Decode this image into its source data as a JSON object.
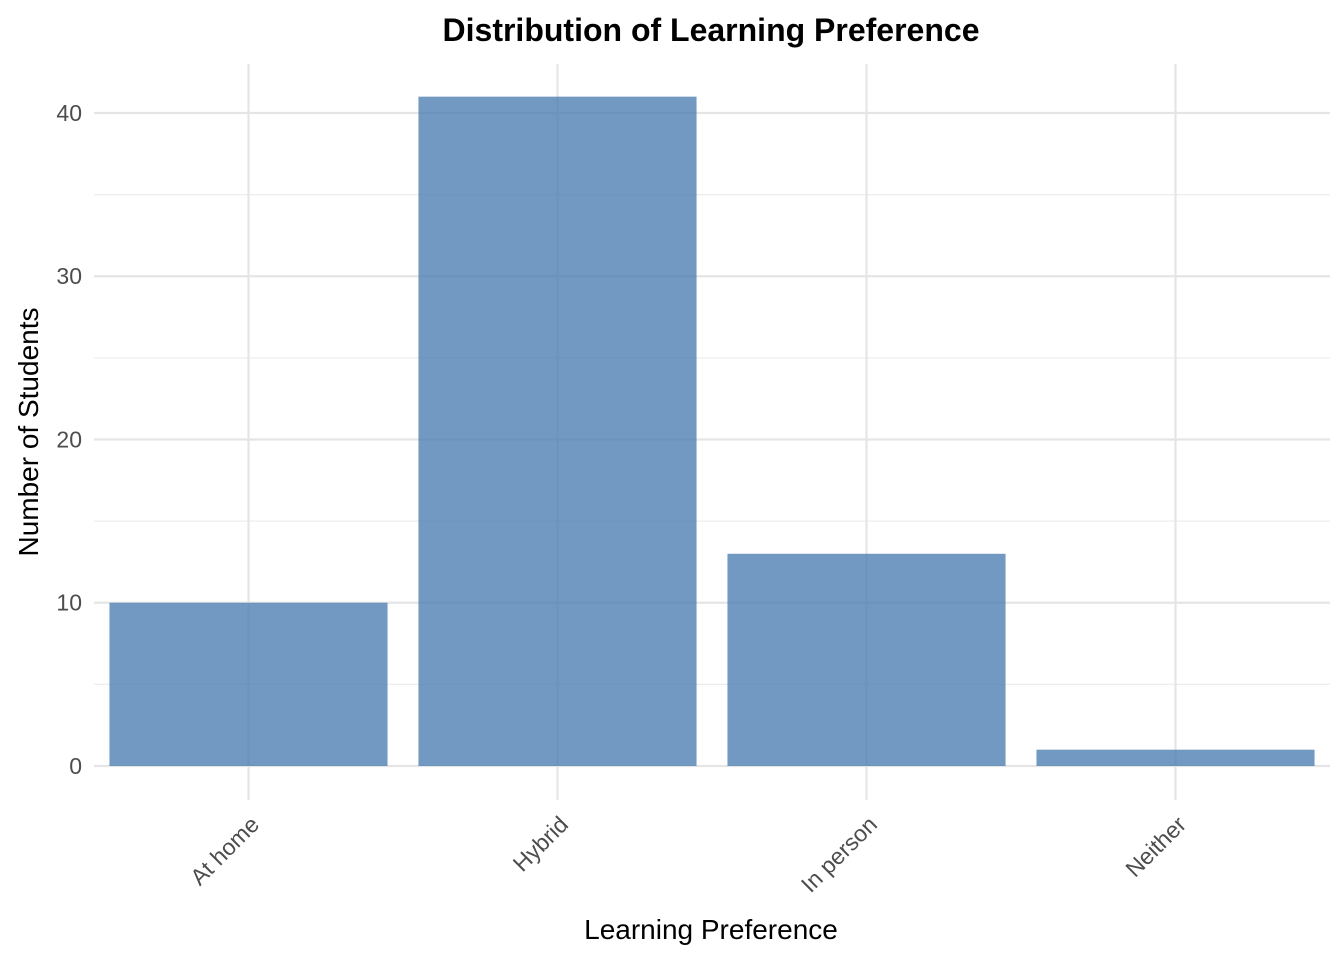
{
  "chart_data": {
    "type": "bar",
    "title": "Distribution of Learning Preference",
    "xlabel": "Learning Preference",
    "ylabel": "Number of Students",
    "categories": [
      "At home",
      "Hybrid",
      "In person",
      "Neither"
    ],
    "values": [
      10,
      41,
      13,
      1
    ],
    "ylim": [
      0,
      43
    ],
    "yticks": [
      0,
      10,
      20,
      30,
      40
    ],
    "y_minor_ticks": [
      5,
      15,
      25,
      35
    ],
    "grid": true,
    "bar_color": "#4a7cb0",
    "bar_opacity": 0.78
  }
}
